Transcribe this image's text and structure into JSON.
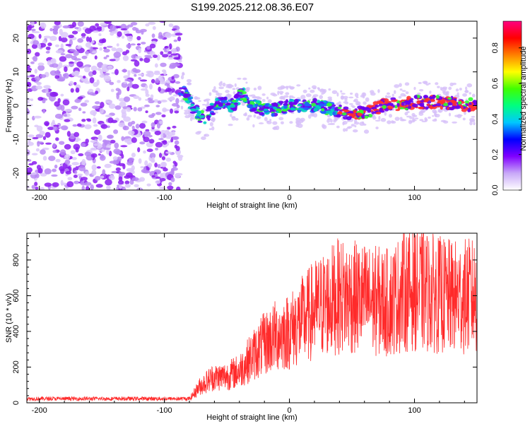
{
  "title": "S199.2025.212.08.36.E07",
  "chart_data": [
    {
      "type": "heatmap",
      "xlabel": "Height of straight line (km)",
      "ylabel": "Frequency (Hz)",
      "xlim": [
        -210,
        150
      ],
      "ylim": [
        -25,
        25
      ],
      "xticks": [
        -200,
        -100,
        0,
        100
      ],
      "yticks": [
        -20,
        -10,
        0,
        10,
        20
      ],
      "colorbar": {
        "label": "Normalized spectral amplitude",
        "range": [
          0,
          0.95
        ],
        "ticks": [
          0.0,
          0.2,
          0.4,
          0.6,
          0.8
        ],
        "colors": [
          "#ffffff",
          "#c8a8f8",
          "#8000ff",
          "#0000ff",
          "#00c8ff",
          "#00ff80",
          "#40ff00",
          "#ffff00",
          "#ff8000",
          "#ff0000",
          "#ff0080"
        ]
      },
      "noise_region_x": [
        -210,
        -87
      ],
      "ridge": [
        {
          "x": -87,
          "y": 5
        },
        {
          "x": -82,
          "y": 3
        },
        {
          "x": -78,
          "y": 0
        },
        {
          "x": -72,
          "y": -3
        },
        {
          "x": -67,
          "y": -4
        },
        {
          "x": -62,
          "y": -1
        },
        {
          "x": -55,
          "y": 1
        },
        {
          "x": -45,
          "y": 0
        },
        {
          "x": -38,
          "y": 4
        },
        {
          "x": -30,
          "y": 0
        },
        {
          "x": -20,
          "y": -1
        },
        {
          "x": -10,
          "y": -1
        },
        {
          "x": 0,
          "y": 0
        },
        {
          "x": 20,
          "y": 0
        },
        {
          "x": 35,
          "y": -1
        },
        {
          "x": 45,
          "y": -2
        },
        {
          "x": 60,
          "y": -2
        },
        {
          "x": 75,
          "y": 0
        },
        {
          "x": 100,
          "y": 1
        },
        {
          "x": 120,
          "y": 1
        },
        {
          "x": 150,
          "y": 0
        }
      ]
    },
    {
      "type": "line",
      "xlabel": "Height of straight line (km)",
      "ylabel": "SNR (10 * v/v)",
      "xlim": [
        -210,
        150
      ],
      "ylim": [
        0,
        950
      ],
      "xticks": [
        -200,
        -100,
        0,
        100
      ],
      "yticks": [
        0,
        200,
        400,
        600,
        800
      ],
      "color": "#ff2a2a",
      "envelope": [
        {
          "x": -210,
          "y": 20
        },
        {
          "x": -80,
          "y": 20
        },
        {
          "x": -72,
          "y": 90
        },
        {
          "x": -62,
          "y": 140
        },
        {
          "x": -50,
          "y": 150
        },
        {
          "x": -40,
          "y": 180
        },
        {
          "x": -30,
          "y": 260
        },
        {
          "x": -20,
          "y": 330
        },
        {
          "x": -10,
          "y": 380
        },
        {
          "x": 0,
          "y": 400
        },
        {
          "x": 10,
          "y": 460
        },
        {
          "x": 20,
          "y": 520
        },
        {
          "x": 30,
          "y": 560
        },
        {
          "x": 40,
          "y": 600
        },
        {
          "x": 60,
          "y": 580
        },
        {
          "x": 80,
          "y": 560
        },
        {
          "x": 90,
          "y": 620
        },
        {
          "x": 100,
          "y": 640
        },
        {
          "x": 110,
          "y": 620
        },
        {
          "x": 130,
          "y": 590
        },
        {
          "x": 150,
          "y": 600
        }
      ]
    }
  ]
}
